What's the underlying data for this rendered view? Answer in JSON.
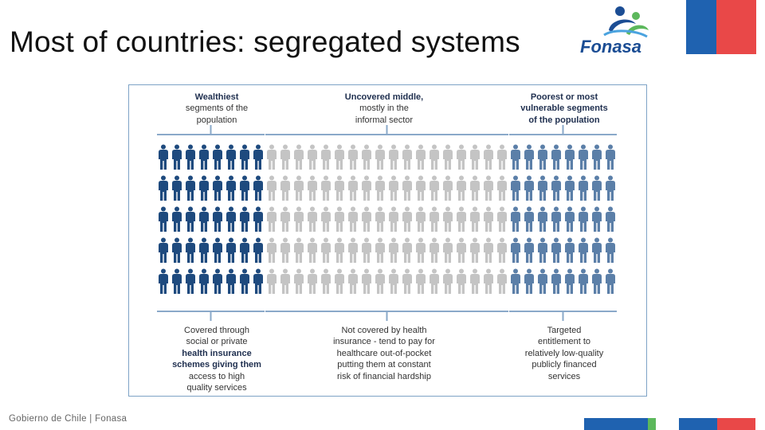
{
  "slide": {
    "title": "Most of countries: segregated systems",
    "logo_text": "Fonasa",
    "footer": "Gobierno de Chile | Fonasa"
  },
  "diagram": {
    "groups": [
      {
        "top_label_bold": "Wealthiest",
        "top_label_rest": [
          "segments of the",
          "population"
        ],
        "bottom_label_plain_start": [
          "Covered through",
          "social or private"
        ],
        "bottom_label_bold": [
          "health insurance",
          "schemes giving them"
        ],
        "bottom_label_plain_end": [
          "access to high",
          "quality services"
        ],
        "color": "#1e4a7e",
        "columns": 8
      },
      {
        "top_label_bold": "Uncovered middle,",
        "top_label_rest": [
          "mostly in the",
          "informal sector"
        ],
        "bottom_label_lines": [
          "Not covered by health",
          "insurance - tend to pay for",
          "healthcare out-of-pocket",
          "putting them at constant",
          "risk of financial hardship"
        ],
        "color": "#c4c4c4",
        "columns": 18
      },
      {
        "top_label_bold": "Poorest or most",
        "top_label_rest": [
          "vulnerable segments",
          "of the population"
        ],
        "bottom_label_lines": [
          "Targeted",
          "entitlement to",
          "relatively low-quality",
          "publicly financed",
          "services"
        ],
        "color": "#5b7fa8",
        "columns": 8
      }
    ],
    "rows": 5
  },
  "colors": {
    "flag_blue": "#1f62b0",
    "flag_red": "#e94848",
    "panel_border": "#7ea3c6",
    "bracket": "#8aa9c9",
    "logo_blue": "#1b4d94",
    "logo_green": "#5cb85c",
    "logo_light": "#4aa3df"
  }
}
